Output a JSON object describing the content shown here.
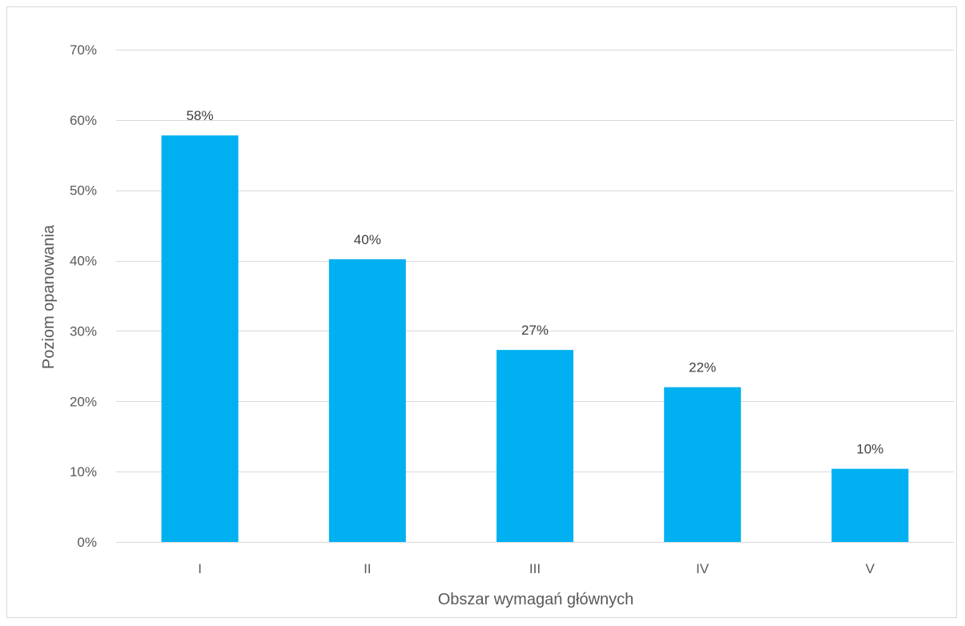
{
  "chart_data": {
    "type": "bar",
    "categories": [
      "I",
      "II",
      "III",
      "IV",
      "V"
    ],
    "values": [
      0.578,
      0.402,
      0.273,
      0.22,
      0.104
    ],
    "data_labels": [
      "58%",
      "40%",
      "27%",
      "22%",
      "10%"
    ],
    "ylim": [
      0,
      0.7
    ],
    "yticks": [
      0,
      0.1,
      0.2,
      0.3,
      0.4,
      0.5,
      0.6,
      0.7
    ],
    "ytick_labels": [
      "0%",
      "10%",
      "20%",
      "30%",
      "40%",
      "50%",
      "60%",
      "70%"
    ],
    "xlabel": "Obszar wymagań głównych",
    "ylabel": "Poziom opanowania",
    "grid": true,
    "bar_color": "#00B0F0",
    "grid_color": "#d9d9d9"
  }
}
